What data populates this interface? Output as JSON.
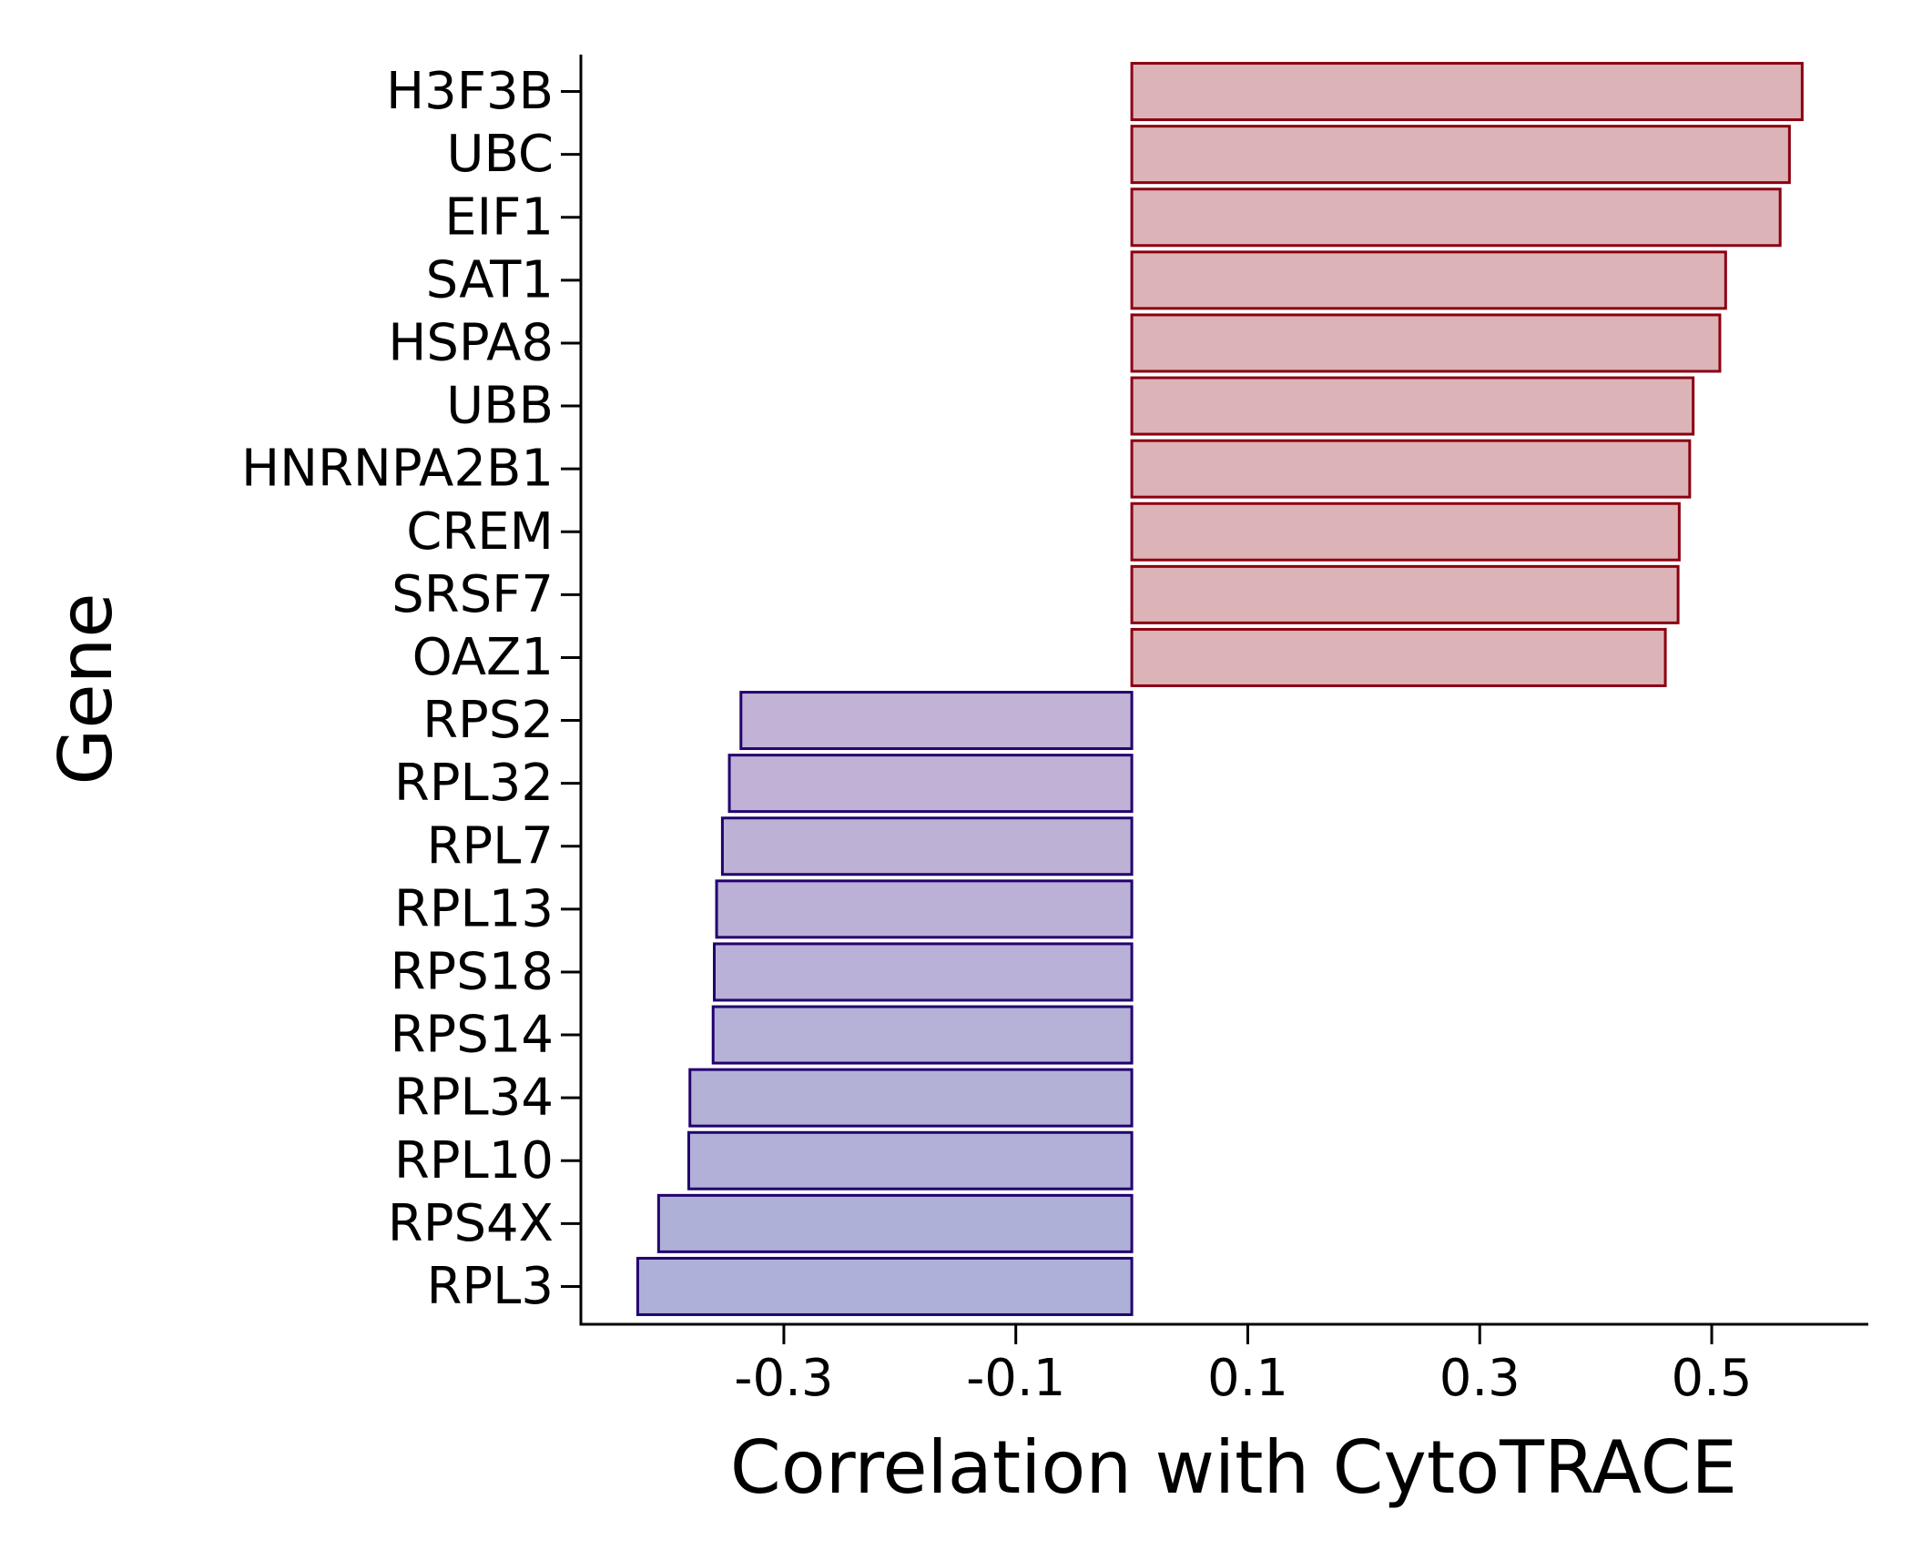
{
  "chart_data": {
    "type": "bar",
    "orientation": "horizontal",
    "xlabel": "Correlation with CytoTRACE",
    "ylabel": "Gene",
    "xlim": [
      -0.475,
      0.635
    ],
    "xticks": [
      -0.3,
      -0.1,
      0.1,
      0.3,
      0.5
    ],
    "xtick_labels": [
      "-0.3",
      "-0.1",
      "0.1",
      "0.3",
      "0.5"
    ],
    "grid": false,
    "categories": [
      "H3F3B",
      "UBC",
      "EIF1",
      "SAT1",
      "HSPA8",
      "UBB",
      "HNRNPA2B1",
      "CREM",
      "SRSF7",
      "OAZ1",
      "RPS2",
      "RPL32",
      "RPL7",
      "RPL13",
      "RPS18",
      "RPS14",
      "RPL34",
      "RPL10",
      "RPS4X",
      "RPL3"
    ],
    "values": [
      0.578,
      0.567,
      0.559,
      0.512,
      0.507,
      0.484,
      0.481,
      0.472,
      0.471,
      0.46,
      -0.337,
      -0.347,
      -0.353,
      -0.358,
      -0.36,
      -0.361,
      -0.381,
      -0.382,
      -0.408,
      -0.426
    ],
    "colors": {
      "positive_fill": "#dcb4b8",
      "positive_edge": "#8b0010",
      "negative_fill_top": "#c2b2d6",
      "negative_fill_bottom": "#adb0d8",
      "negative_edge": "#22006e",
      "axis": "#000000"
    }
  }
}
